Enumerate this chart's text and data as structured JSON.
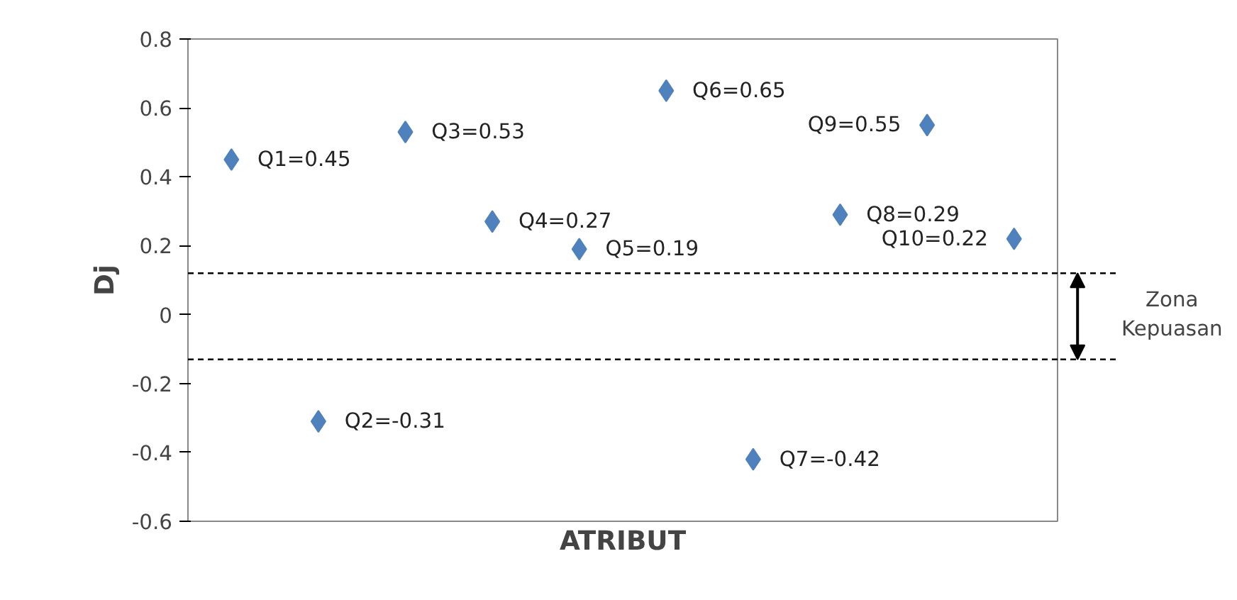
{
  "chart_data": {
    "type": "scatter",
    "xlabel": "ATRIBUT",
    "ylabel": "Dj",
    "categories": [
      null,
      null,
      null,
      null,
      null,
      null,
      null,
      null,
      null,
      null
    ],
    "values": [
      0.45,
      -0.31,
      0.53,
      0.27,
      0.19,
      0.65,
      -0.42,
      0.29,
      0.55,
      0.22
    ],
    "value_labels": [
      "Q1=0.45",
      "Q2=-0.31",
      "Q3=0.53",
      "Q4=0.27",
      "Q5=0.19",
      "Q6=0.65",
      "Q7=-0.42",
      "Q8=0.29",
      "Q9=0.55",
      "Q10=0.22"
    ],
    "color": "#4f81bd",
    "marker": "diamond",
    "ylim": [
      -0.6,
      0.8
    ],
    "yticks": [
      -0.6,
      -0.4,
      -0.2,
      0,
      0.2,
      0.4,
      0.6,
      0.8
    ],
    "ref_lines": [
      {
        "axis": "y",
        "value": 0.12,
        "color": "#000000",
        "line_style": "dashed"
      },
      {
        "axis": "y",
        "value": -0.13,
        "color": "#000000",
        "line_style": "dashed"
      }
    ],
    "annotations": [
      "Zona\nKepuasan"
    ],
    "grid": false,
    "tick_labels": "y"
  }
}
